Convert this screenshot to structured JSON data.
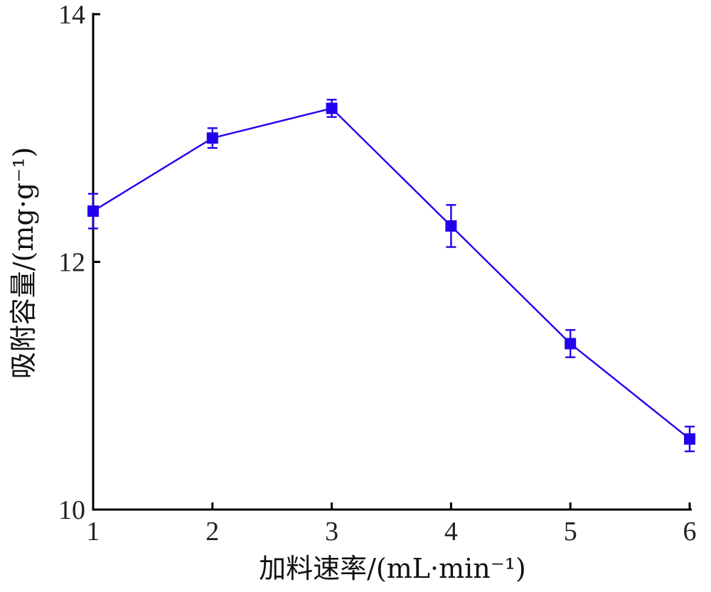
{
  "chart_data": {
    "type": "line",
    "xlabel": "加料速率/(mL·min⁻¹)",
    "ylabel": "吸附容量/(mg·g⁻¹)",
    "xlim": [
      1,
      6
    ],
    "ylim": [
      10,
      14
    ],
    "x_ticks": [
      "1",
      "2",
      "3",
      "4",
      "5",
      "6"
    ],
    "y_ticks": [
      "10",
      "12",
      "14"
    ],
    "grid": false,
    "color": "#2200ee",
    "marker": "square",
    "series": [
      {
        "x": [
          1,
          2,
          3,
          4,
          5,
          6
        ],
        "values": [
          12.41,
          13.0,
          13.24,
          12.29,
          11.34,
          10.57
        ],
        "error": [
          0.14,
          0.08,
          0.07,
          0.17,
          0.11,
          0.1
        ]
      }
    ]
  }
}
